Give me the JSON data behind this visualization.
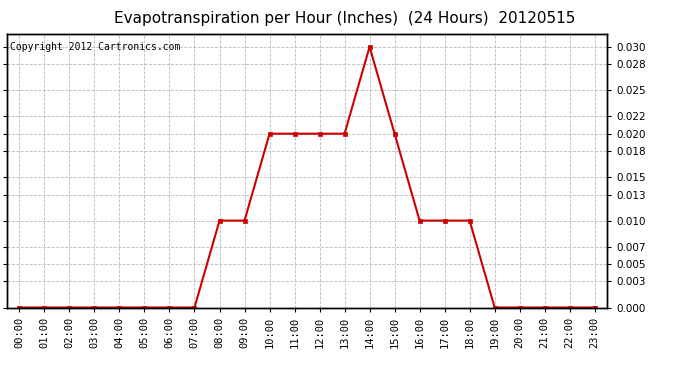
{
  "title": "Evapotranspiration per Hour (Inches)  (24 Hours)  20120515",
  "copyright": "Copyright 2012 Cartronics.com",
  "hours": [
    "00:00",
    "01:00",
    "02:00",
    "03:00",
    "04:00",
    "05:00",
    "06:00",
    "07:00",
    "08:00",
    "09:00",
    "10:00",
    "11:00",
    "12:00",
    "13:00",
    "14:00",
    "15:00",
    "16:00",
    "17:00",
    "18:00",
    "19:00",
    "20:00",
    "21:00",
    "22:00",
    "23:00"
  ],
  "values": [
    0.0,
    0.0,
    0.0,
    0.0,
    0.0,
    0.0,
    0.0,
    0.0,
    0.01,
    0.01,
    0.02,
    0.02,
    0.02,
    0.02,
    0.03,
    0.02,
    0.01,
    0.01,
    0.01,
    0.0,
    0.0,
    0.0,
    0.0,
    0.0
  ],
  "line_color": "#cc0000",
  "marker": "s",
  "marker_size": 3,
  "bg_color": "#ffffff",
  "plot_bg_color": "#ffffff",
  "grid_color": "#bbbbbb",
  "ylim": [
    0.0,
    0.0315
  ],
  "yticks": [
    0.0,
    0.003,
    0.005,
    0.007,
    0.01,
    0.013,
    0.015,
    0.018,
    0.02,
    0.022,
    0.025,
    0.028,
    0.03
  ],
  "title_fontsize": 11,
  "tick_fontsize": 7.5,
  "copyright_fontsize": 7
}
